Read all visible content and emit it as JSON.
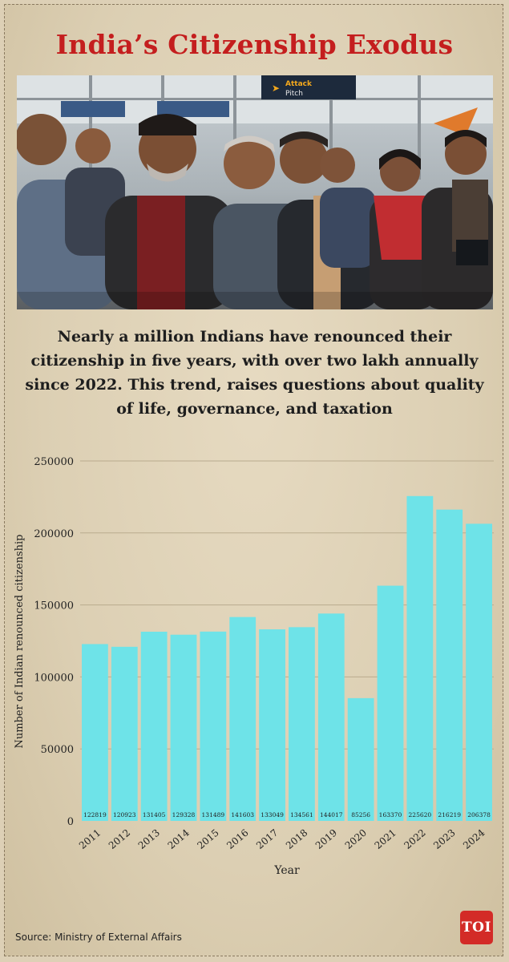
{
  "header": {
    "title": "India’s Citizenship Exodus",
    "subtitle": "Nearly a million Indians have renounced their citizenship in five years, with over two lakh annually since 2022. This trend, raises questions about quality of life, governance, and taxation"
  },
  "photo": {
    "sign_text": "Attack",
    "sign_text_2": "Pitch"
  },
  "chart_data": {
    "type": "bar",
    "title": "",
    "xlabel": "Year",
    "ylabel": "Number of Indian renounced citizenship",
    "categories": [
      "2011",
      "2012",
      "2013",
      "2014",
      "2015",
      "2016",
      "2017",
      "2018",
      "2019",
      "2020",
      "2021",
      "2022",
      "2023",
      "2024"
    ],
    "values": [
      122819,
      120923,
      131405,
      129328,
      131489,
      141603,
      133049,
      134561,
      144017,
      85256,
      163370,
      225620,
      216219,
      206378
    ],
    "yticks": [
      0,
      50000,
      100000,
      150000,
      200000,
      250000
    ],
    "ylim": [
      0,
      250000
    ],
    "bar_color": "#6ee3e8",
    "grid": true
  },
  "footer": {
    "source": "Source: Ministry of External Affairs",
    "logo": "TOI"
  },
  "colors": {
    "title": "#c41e1e",
    "logo_bg": "#d32b27"
  }
}
